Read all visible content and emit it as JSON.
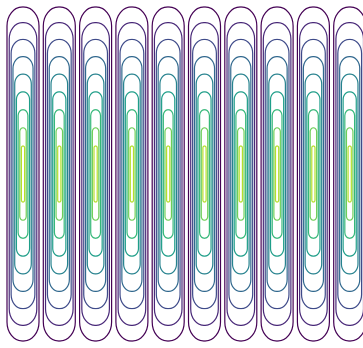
{
  "chart_data": {
    "type": "contour",
    "title": "",
    "xlabel": "",
    "ylabel": "",
    "grid": false,
    "legend": "none",
    "axes_visible": false,
    "colormap": "viridis",
    "columns": 10,
    "levels": [
      {
        "value": 0.1,
        "color": "#440154"
      },
      {
        "value": 0.2,
        "color": "#482878"
      },
      {
        "value": 0.3,
        "color": "#3e4a89"
      },
      {
        "value": 0.4,
        "color": "#31688e"
      },
      {
        "value": 0.5,
        "color": "#26828e"
      },
      {
        "value": 0.6,
        "color": "#1f9e89"
      },
      {
        "value": 0.7,
        "color": "#35b779"
      },
      {
        "value": 0.8,
        "color": "#6ece58"
      },
      {
        "value": 0.9,
        "color": "#b5de2b"
      }
    ]
  }
}
